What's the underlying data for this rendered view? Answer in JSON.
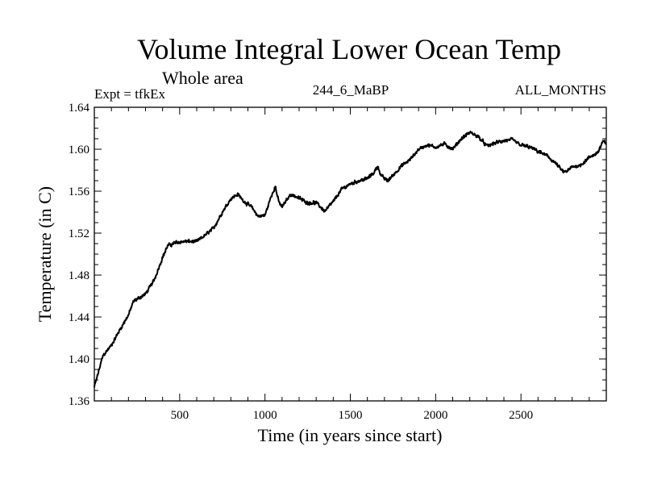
{
  "chart_data": {
    "type": "line",
    "title": "Volume Integral Lower Ocean Temp",
    "subtitle": "Whole area",
    "left_label": "Expt = tfkEx",
    "center_label": "244_6_MaBP",
    "right_label": "ALL_MONTHS",
    "xlabel": "Time (in years since start)",
    "ylabel": "Temperature (in C)",
    "xlim": [
      0,
      3000
    ],
    "ylim": [
      1.36,
      1.64
    ],
    "xticks": [
      500,
      1000,
      1500,
      2000,
      2500
    ],
    "yticks": [
      1.36,
      1.4,
      1.44,
      1.48,
      1.52,
      1.56,
      1.6,
      1.64
    ],
    "ytick_labels": [
      "1.36",
      "1.40",
      "1.44",
      "1.48",
      "1.52",
      "1.56",
      "1.60",
      "1.64"
    ],
    "grid": false,
    "line_color": "#000000",
    "series": [
      {
        "x": [
          0,
          20,
          50,
          100,
          150,
          200,
          230,
          300,
          350,
          400,
          430,
          480,
          520,
          600,
          650,
          700,
          750,
          800,
          840,
          880,
          920,
          960,
          1000,
          1030,
          1060,
          1080,
          1100,
          1150,
          1180,
          1250,
          1300,
          1350,
          1400,
          1450,
          1500,
          1550,
          1600,
          1640,
          1660,
          1680,
          1700,
          1720,
          1800,
          1850,
          1900,
          1950,
          2000,
          2050,
          2100,
          2150,
          2200,
          2250,
          2300,
          2350,
          2400,
          2450,
          2500,
          2550,
          2600,
          2650,
          2700,
          2750,
          2770,
          2800,
          2850,
          2900,
          2950,
          2980,
          3000
        ],
        "y": [
          1.373,
          1.385,
          1.403,
          1.413,
          1.428,
          1.442,
          1.455,
          1.462,
          1.475,
          1.497,
          1.508,
          1.511,
          1.512,
          1.512,
          1.518,
          1.525,
          1.54,
          1.553,
          1.557,
          1.55,
          1.545,
          1.536,
          1.537,
          1.552,
          1.565,
          1.55,
          1.545,
          1.557,
          1.555,
          1.549,
          1.549,
          1.541,
          1.55,
          1.562,
          1.567,
          1.57,
          1.572,
          1.578,
          1.584,
          1.575,
          1.572,
          1.57,
          1.584,
          1.59,
          1.6,
          1.604,
          1.602,
          1.605,
          1.6,
          1.61,
          1.616,
          1.612,
          1.603,
          1.606,
          1.608,
          1.609,
          1.604,
          1.602,
          1.598,
          1.594,
          1.587,
          1.578,
          1.579,
          1.583,
          1.585,
          1.592,
          1.597,
          1.607,
          1.606
        ]
      }
    ]
  }
}
